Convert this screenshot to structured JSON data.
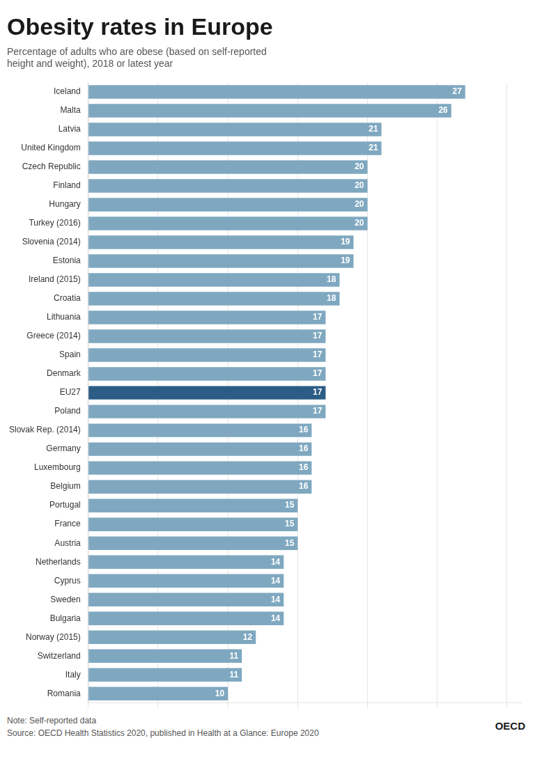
{
  "chart_data": {
    "type": "bar",
    "orientation": "horizontal",
    "title": "Obesity rates in Europe",
    "subtitle": "Percentage of adults who are obese (based on self-reported\nheight and weight), 2018 or latest year",
    "annotations": [
      "Note:  Self-reported data",
      "Source: OECD Health Statistics 2020, published in Health at a Glance: Europe 2020",
      "OECD"
    ],
    "categories": [
      "Iceland",
      "Malta",
      "Latvia",
      "United Kingdom",
      "Czech Republic",
      "Finland",
      "Hungary",
      "Turkey (2016)",
      "Slovenia (2014)",
      "Estonia",
      "Ireland (2015)",
      "Croatia",
      "Lithuania",
      "Greece (2014)",
      "Spain",
      "Denmark",
      "EU27",
      "Poland",
      "Slovak Rep. (2014)",
      "Germany",
      "Luxembourg",
      "Belgium",
      "Portugal",
      "France",
      "Austria",
      "Netherlands",
      "Cyprus",
      "Sweden",
      "Bulgaria",
      "Norway (2015)",
      "Switzerland",
      "Italy",
      "Romania"
    ],
    "values": [
      27,
      26,
      21,
      21,
      20,
      20,
      20,
      20,
      19,
      19,
      18,
      18,
      17,
      17,
      17,
      17,
      17,
      17,
      16,
      16,
      16,
      16,
      15,
      15,
      15,
      14,
      14,
      14,
      14,
      12,
      11,
      11,
      10
    ],
    "colors": [
      "#7fa8c0",
      "#7fa8c0",
      "#7fa8c0",
      "#7fa8c0",
      "#7fa8c0",
      "#7fa8c0",
      "#7fa8c0",
      "#7fa8c0",
      "#7fa8c0",
      "#7fa8c0",
      "#7fa8c0",
      "#7fa8c0",
      "#7fa8c0",
      "#7fa8c0",
      "#7fa8c0",
      "#7fa8c0",
      "#2b5c85",
      "#7fa8c0",
      "#7fa8c0",
      "#7fa8c0",
      "#7fa8c0",
      "#7fa8c0",
      "#7fa8c0",
      "#7fa8c0",
      "#7fa8c0",
      "#7fa8c0",
      "#7fa8c0",
      "#7fa8c0",
      "#7fa8c0",
      "#7fa8c0",
      "#7fa8c0",
      "#7fa8c0",
      "#7fa8c0"
    ],
    "xlim": [
      0,
      31
    ],
    "xticks": [
      0,
      5,
      10,
      15,
      20,
      25,
      30
    ],
    "grid": true,
    "tick_labels": "y",
    "data_labels": true
  }
}
